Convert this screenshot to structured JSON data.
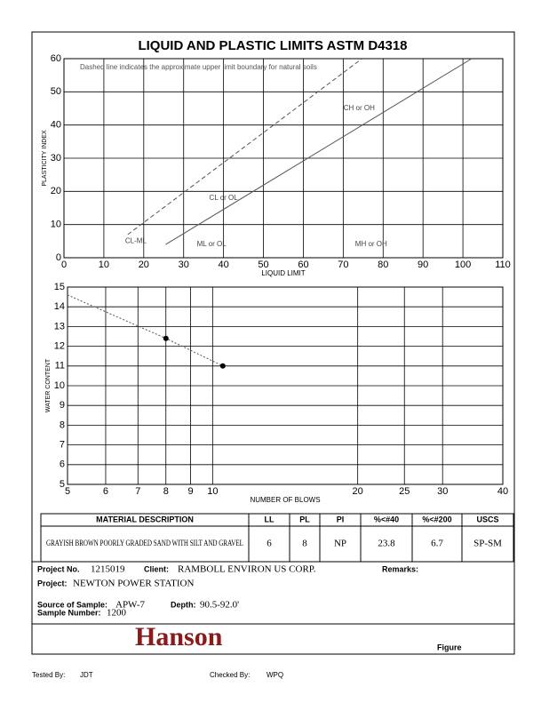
{
  "title": "LIQUID AND PLASTIC LIMITS ASTM D4318",
  "chart_data": [
    {
      "type": "plasticity",
      "xlabel": "LIQUID LIMIT",
      "ylabel": "PLASTICITY INDEX",
      "xlim": [
        0,
        110
      ],
      "xticks": [
        0,
        10,
        20,
        30,
        40,
        50,
        60,
        70,
        80,
        90,
        100,
        110
      ],
      "ylim": [
        0,
        60
      ],
      "yticks": [
        0,
        10,
        20,
        30,
        40,
        50,
        60
      ],
      "grid": true,
      "note": "Dashed line indicates the approximate upper limit boundary for natural soils",
      "annotations": [
        "CL or OL",
        "CH or OH",
        "ML or OL",
        "MH or OH",
        "CL-ML"
      ],
      "lines": [
        {
          "style": "solid",
          "x": [
            25.5,
            102.2
          ],
          "y": [
            4,
            60
          ]
        },
        {
          "style": "dashed",
          "x": [
            16,
            74.7
          ],
          "y": [
            7,
            60
          ]
        }
      ]
    },
    {
      "type": "scatter",
      "xlabel": "NUMBER OF BLOWS",
      "ylabel": "WATER CONTENT",
      "log_x": true,
      "xlim": [
        5,
        40
      ],
      "xticks": [
        5,
        6,
        7,
        8,
        9,
        10,
        20,
        25,
        30,
        40
      ],
      "ylim": [
        5,
        15
      ],
      "yticks": [
        5,
        6,
        7,
        8,
        9,
        10,
        11,
        12,
        13,
        14,
        15
      ],
      "grid": true,
      "x": [
        8,
        10.5
      ],
      "values": [
        12.4,
        11.0
      ],
      "color": "#000000",
      "lines": [
        {
          "style": "dotted",
          "x": [
            5,
            8,
            10.5
          ],
          "y": [
            14.6,
            12.4,
            11.0
          ]
        }
      ]
    }
  ],
  "table": {
    "headers": [
      "MATERIAL DESCRIPTION",
      "LL",
      "PL",
      "PI",
      "%<#40",
      "%<#200",
      "USCS"
    ],
    "rows": [
      [
        "GRAYISH BROWN POORLY GRADED SAND WITH SILT AND GRAVEL",
        "6",
        "8",
        "NP",
        "23.8",
        "6.7",
        "SP-SM"
      ]
    ]
  },
  "info": {
    "project_no_label": "Project No.",
    "project_no": "1215019",
    "client_label": "Client:",
    "client": "RAMBOLL ENVIRON US CORP.",
    "remarks_label": "Remarks:",
    "project_label": "Project:",
    "project": "NEWTON POWER STATION",
    "source_label": "Source of Sample:",
    "source": "APW-7",
    "depth_label": "Depth:",
    "depth": "90.5-92.0'",
    "sample_label": "Sample Number:",
    "sample": "1200",
    "logo": "Hanson",
    "figure_label": "Figure"
  },
  "footer": {
    "tested_label": "Tested By:",
    "tested": "JDT",
    "checked_label": "Checked By:",
    "checked": "WPQ"
  }
}
